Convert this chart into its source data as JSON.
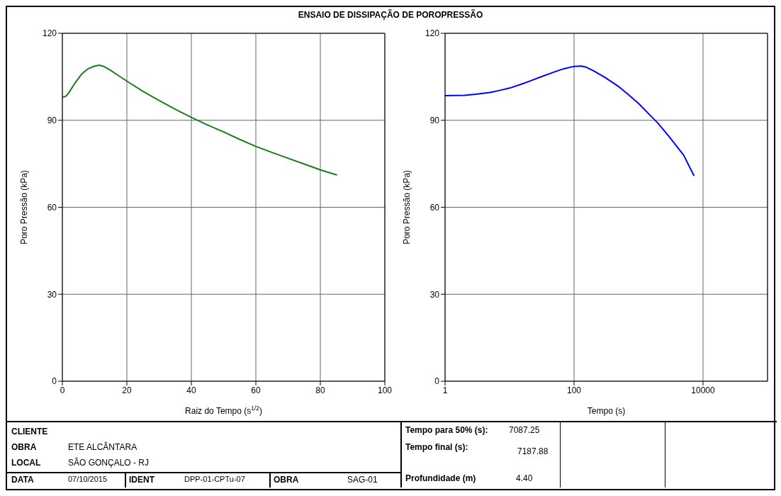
{
  "chart_data": [
    {
      "type": "line",
      "title": "ENSAIO DE DISSIPAÇÃO DE POROPRESSÃO",
      "xlabel": "Raiz do Tempo (s$^{1/2}$)",
      "ylabel": "Poro Pressão (kPa)",
      "xlim": [
        0,
        100
      ],
      "xticks": [
        0,
        20,
        40,
        60,
        80,
        100
      ],
      "ylim": [
        0,
        120
      ],
      "yticks": [
        0,
        30,
        60,
        90,
        120
      ],
      "grid": true,
      "marker": "none",
      "line_style": "solid",
      "x": [
        0,
        1,
        2,
        4,
        6,
        8,
        10,
        11.5,
        13,
        15,
        17,
        20,
        25,
        30,
        35,
        40,
        45,
        50,
        55,
        60,
        65,
        70,
        75,
        80,
        85
      ],
      "series": [
        {
          "color": "#1a7d1a",
          "values": [
            98,
            98.2,
            99.5,
            103,
            106,
            107.8,
            108.7,
            109,
            108.5,
            107.2,
            105.7,
            103.5,
            100,
            96.8,
            93.8,
            91,
            88.4,
            86,
            83.4,
            81,
            78.9,
            76.9,
            74.9,
            72.9,
            71.2
          ]
        }
      ]
    },
    {
      "type": "line",
      "xlabel": "Tempo (s)",
      "ylabel": "Poro Pressão (kPa)",
      "log": "x",
      "xlim": [
        1,
        100000
      ],
      "xticks": [
        1,
        100,
        10000
      ],
      "ylim": [
        0,
        120
      ],
      "yticks": [
        0,
        30,
        60,
        90,
        120
      ],
      "grid": true,
      "marker": "none",
      "line_style": "solid",
      "x": [
        1,
        2,
        3,
        5,
        7,
        10,
        15,
        20,
        30,
        50,
        70,
        100,
        130,
        150,
        200,
        300,
        500,
        700,
        1000,
        1500,
        2000,
        3000,
        5000,
        7188
      ],
      "series": [
        {
          "color": "#0000ff",
          "values": [
            98.5,
            98.6,
            99,
            99.6,
            100.3,
            101.1,
            102.4,
            103.4,
            104.9,
            106.7,
            107.8,
            108.6,
            108.7,
            108.4,
            107.1,
            104.8,
            101.5,
            98.8,
            95.8,
            91.8,
            89,
            84.3,
            78,
            71
          ]
        }
      ]
    },
    {
      "type": "other",
      "annotations": [
        "CLIENTE",
        "OBRA",
        "ETE ALCÂNTARA",
        "LOCAL",
        "SÃO GONÇALO - RJ",
        "DATA",
        "07/10/2015",
        "IDENT",
        "DPP-01-CPTu-07",
        "OBRA",
        "SAG-01",
        "Tempo para 50% (s):",
        "7087.25",
        "Tempo final (s):",
        "7187.88",
        "Profundidade (m)",
        "4.40"
      ]
    }
  ]
}
